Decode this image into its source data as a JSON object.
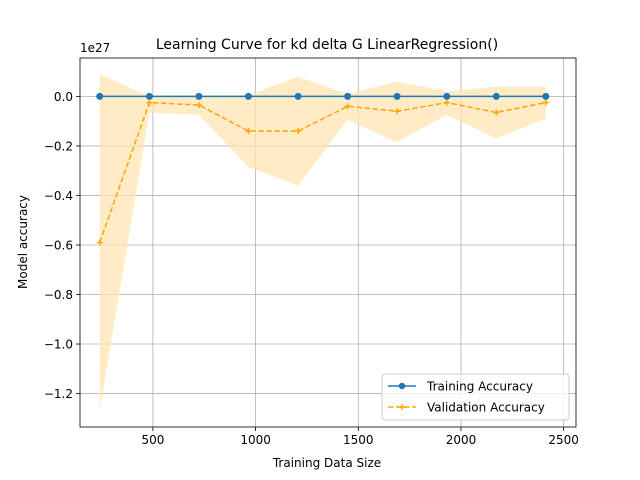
{
  "chart_data": {
    "type": "line",
    "title": "Learning Curve for kd delta G LinearRegression()",
    "xlabel": "Training Data Size",
    "ylabel": "Model accuracy",
    "y_scale_label": "1e27",
    "xlim": [
      145,
      2560
    ],
    "ylim": [
      -1.335,
      0.155
    ],
    "xticks": [
      500,
      1000,
      1500,
      2000,
      2500
    ],
    "xtick_labels": [
      "500",
      "1000",
      "1500",
      "2000",
      "2500"
    ],
    "yticks": [
      0.0,
      -0.2,
      -0.4,
      -0.6,
      -0.8,
      -1.0,
      -1.2
    ],
    "ytick_labels": [
      "0.0",
      "−0.2",
      "−0.4",
      "−0.6",
      "−0.8",
      "−1.0",
      "−1.2"
    ],
    "grid": true,
    "legend_position": "lower right",
    "x": [
      241,
      483,
      724,
      965,
      1207,
      1448,
      1689,
      1931,
      2172,
      2413
    ],
    "series": [
      {
        "name": "Training Accuracy",
        "color": "#1f77b4",
        "style": "solid",
        "marker": "circle",
        "values": [
          0,
          0,
          0,
          0,
          0,
          0,
          0,
          0,
          0,
          0
        ]
      },
      {
        "name": "Validation Accuracy",
        "color": "#ffa500",
        "style": "dashed",
        "marker": "plus",
        "values": [
          -0.59,
          -0.025,
          -0.035,
          -0.14,
          -0.14,
          -0.04,
          -0.06,
          -0.025,
          -0.065,
          -0.025
        ],
        "band_upper": [
          0.09,
          0.0,
          0.0,
          0.005,
          0.08,
          0.01,
          0.06,
          0.02,
          0.04,
          0.04
        ],
        "band_lower": [
          -1.27,
          -0.065,
          -0.075,
          -0.285,
          -0.36,
          -0.095,
          -0.185,
          -0.075,
          -0.17,
          -0.09
        ],
        "band_color": "#ffe5b4"
      }
    ]
  }
}
